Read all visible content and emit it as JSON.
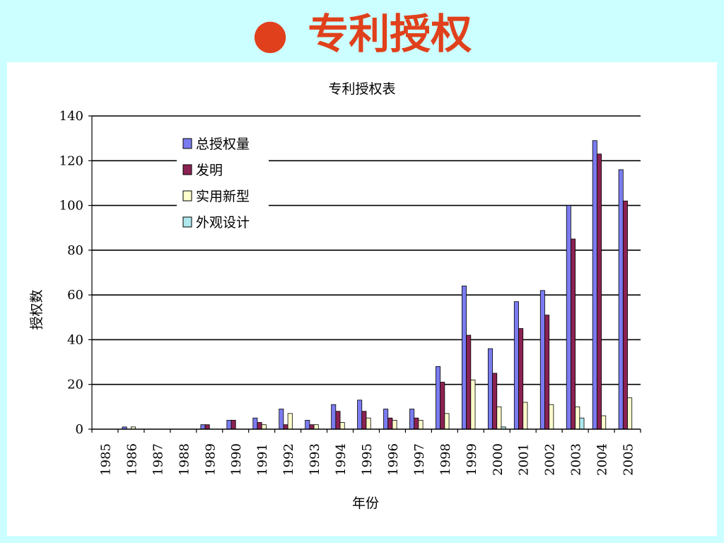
{
  "slide": {
    "title": "专利授权",
    "bullet": "●"
  },
  "colors": {
    "background": "#ccffff",
    "title": "#e0401b",
    "series": [
      "#7b7bf0",
      "#8b2252",
      "#ffffcc",
      "#aee8ec"
    ]
  },
  "chart_data": {
    "type": "bar",
    "title": "专利授权表",
    "xlabel": "年份",
    "ylabel": "授权数",
    "ylim": [
      0,
      140
    ],
    "yticks": [
      0,
      20,
      40,
      60,
      80,
      100,
      120,
      140
    ],
    "grid": true,
    "legend_position": "top-left",
    "categories": [
      "1985",
      "1986",
      "1987",
      "1988",
      "1989",
      "1990",
      "1991",
      "1992",
      "1993",
      "1994",
      "1995",
      "1996",
      "1997",
      "1998",
      "1999",
      "2000",
      "2001",
      "2002",
      "2003",
      "2004",
      "2005"
    ],
    "series": [
      {
        "name": "总授权量",
        "values": [
          0,
          1,
          0,
          0,
          2,
          4,
          5,
          9,
          4,
          11,
          13,
          9,
          9,
          28,
          64,
          36,
          57,
          62,
          100,
          129,
          116
        ]
      },
      {
        "name": "发明",
        "values": [
          0,
          0,
          0,
          0,
          2,
          4,
          3,
          2,
          2,
          8,
          8,
          5,
          5,
          21,
          42,
          25,
          45,
          51,
          85,
          123,
          102
        ]
      },
      {
        "name": "实用新型",
        "values": [
          0,
          1,
          0,
          0,
          0,
          0,
          2,
          7,
          2,
          3,
          5,
          4,
          4,
          7,
          22,
          10,
          12,
          11,
          10,
          6,
          14
        ]
      },
      {
        "name": "外观设计",
        "values": [
          0,
          0,
          0,
          0,
          0,
          0,
          0,
          0,
          0,
          0,
          0,
          0,
          0,
          0,
          0,
          1,
          0,
          0,
          5,
          0,
          0
        ]
      }
    ]
  }
}
